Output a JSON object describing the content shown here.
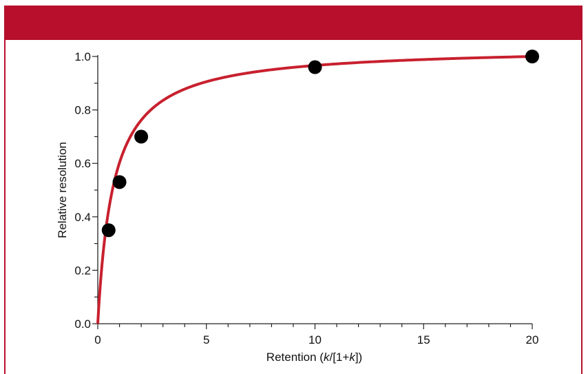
{
  "chart_data": {
    "type": "scatter",
    "title": "",
    "xlabel_parts": [
      "Retention (",
      "k",
      "/[1+",
      "k",
      "])"
    ],
    "ylabel": "Relative resolution",
    "xlim": [
      0,
      20
    ],
    "ylim": [
      0,
      1.0
    ],
    "x_ticks": [
      0,
      5,
      10,
      15,
      20
    ],
    "x_tick_labels": [
      "0",
      "5",
      "10",
      "15",
      "20"
    ],
    "y_ticks": [
      0.0,
      0.2,
      0.4,
      0.6,
      0.8,
      1.0
    ],
    "y_tick_labels": [
      "0.0",
      "0.2",
      "0.4",
      "0.6",
      "0.8",
      "1.0"
    ],
    "points": [
      {
        "x": 0.5,
        "y": 0.35
      },
      {
        "x": 1,
        "y": 0.53
      },
      {
        "x": 2,
        "y": 0.7
      },
      {
        "x": 10,
        "y": 0.96
      },
      {
        "x": 20,
        "y": 1.0
      }
    ],
    "curve": "k/(1+k) scaled",
    "colors": {
      "curve": "#c8202e",
      "points": "#000000",
      "header": "#b70f2c"
    },
    "grid": false
  }
}
